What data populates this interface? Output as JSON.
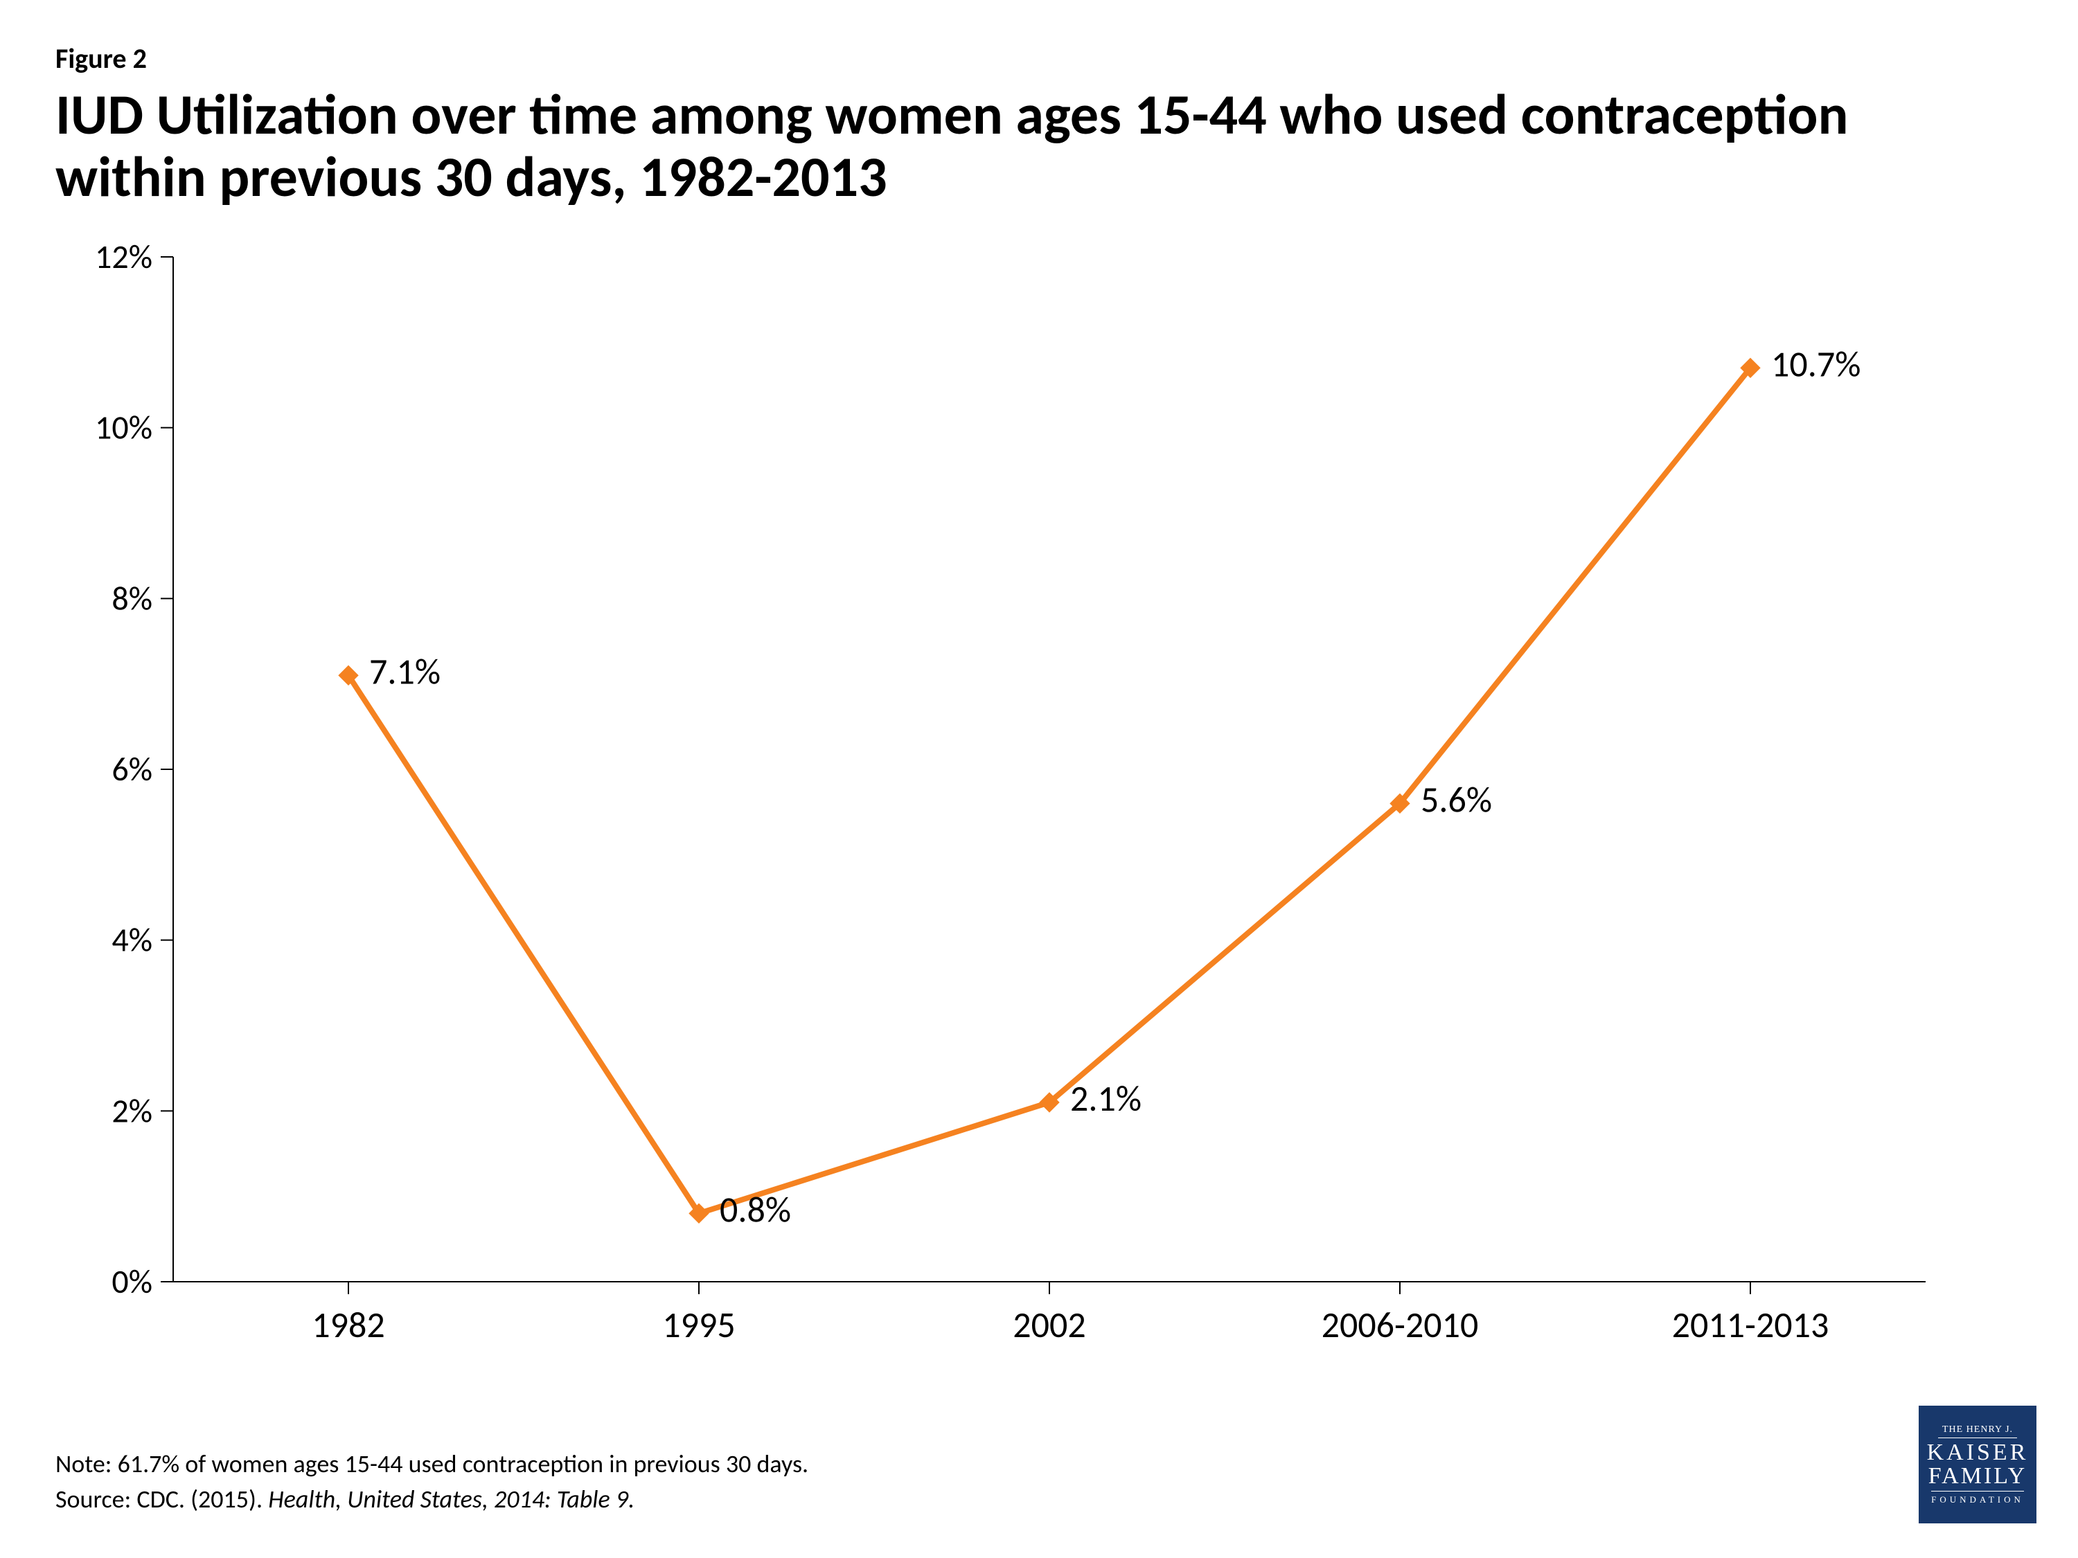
{
  "figure_label": "Figure 2",
  "title": "IUD Utilization over time among women ages 15-44 who used contraception within previous 30 days, 1982-2013",
  "chart": {
    "type": "line",
    "categories": [
      "1982",
      "1995",
      "2002",
      "2006-2010",
      "2011-2013"
    ],
    "values": [
      7.1,
      0.8,
      2.1,
      5.6,
      10.7
    ],
    "value_labels": [
      "7.1%",
      "0.8%",
      "2.1%",
      "5.6%",
      "10.7%"
    ],
    "ylim": [
      0,
      12
    ],
    "ytick_step": 2,
    "ytick_labels": [
      "0%",
      "2%",
      "4%",
      "6%",
      "8%",
      "10%",
      "12%"
    ],
    "line_color": "#f58220",
    "line_width": 8,
    "marker_size": 14,
    "marker_shape": "diamond",
    "axis_color": "#000000",
    "axis_width": 2,
    "tick_color": "#000000",
    "background_color": "#ffffff",
    "axis_fontsize": 48,
    "category_fontsize": 52,
    "data_label_fontsize": 52
  },
  "footer": {
    "note": "Note: 61.7% of women ages 15-44 used contraception in previous 30 days.",
    "source_prefix": "Source: CDC. (2015). ",
    "source_italic": "Health, United States, 2014: Table 9."
  },
  "logo": {
    "line1": "THE HENRY J.",
    "line2": "KAISER",
    "line3": "FAMILY",
    "line4": "FOUNDATION",
    "bg_color": "#18386b",
    "fg_color": "#ffffff"
  }
}
